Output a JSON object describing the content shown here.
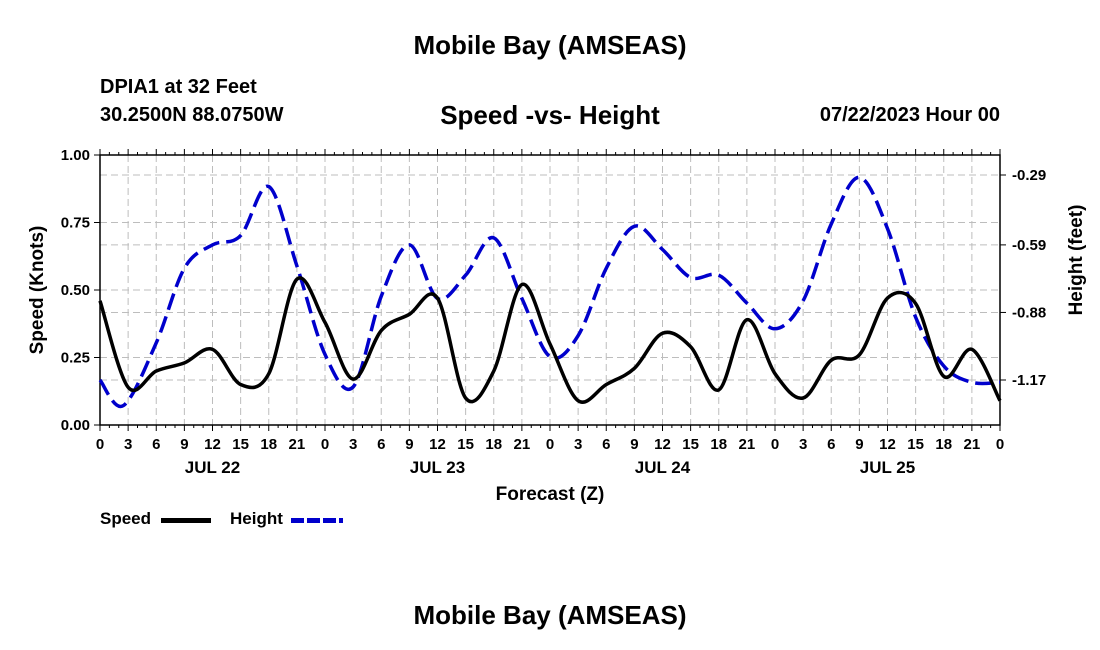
{
  "header": {
    "title": "Mobile Bay (AMSEAS)",
    "station": "DPIA1 at 32 Feet",
    "coords": "30.2500N  88.0750W",
    "subtitle": "Speed -vs- Height",
    "datetime": "07/22/2023 Hour 00"
  },
  "footer": {
    "title": "Mobile Bay (AMSEAS)"
  },
  "chart_data": {
    "type": "line",
    "xlabel": "Forecast (Z)",
    "ylabel": "Speed (Knots)",
    "y2label": "Height (feet)",
    "ylim": [
      0,
      1
    ],
    "y_ticks": [
      "0.00",
      "0.25",
      "0.50",
      "0.75",
      "1.00"
    ],
    "y2_ticks": [
      "-1.17",
      "-0.88",
      "-0.59",
      "-0.29"
    ],
    "x_ticks": [
      "0",
      "3",
      "6",
      "9",
      "12",
      "15",
      "18",
      "21",
      "0",
      "3",
      "6",
      "9",
      "12",
      "15",
      "18",
      "21",
      "0",
      "3",
      "6",
      "9",
      "12",
      "15",
      "18",
      "21",
      "0",
      "3",
      "6",
      "9",
      "12",
      "15",
      "18",
      "21",
      "0"
    ],
    "day_labels": [
      "JUL 22",
      "JUL 23",
      "JUL 24",
      "JUL 25"
    ],
    "grid": true,
    "series": [
      {
        "name": "Speed",
        "color": "#000000",
        "x": [
          0,
          3,
          6,
          9,
          12,
          15,
          18,
          21,
          24,
          27,
          30,
          33,
          36,
          39,
          42,
          45,
          48,
          51,
          54,
          57,
          60,
          63,
          66,
          69,
          72,
          75,
          78,
          81,
          84,
          87,
          90,
          93,
          96
        ],
        "values": [
          0.46,
          0.14,
          0.2,
          0.23,
          0.28,
          0.15,
          0.19,
          0.54,
          0.38,
          0.17,
          0.35,
          0.41,
          0.47,
          0.1,
          0.2,
          0.52,
          0.3,
          0.09,
          0.15,
          0.21,
          0.34,
          0.29,
          0.13,
          0.39,
          0.19,
          0.1,
          0.24,
          0.26,
          0.47,
          0.45,
          0.18,
          0.28,
          0.09
        ]
      },
      {
        "name": "Height",
        "color": "#0000cc",
        "x": [
          0,
          2.5,
          6,
          9,
          12,
          15,
          18,
          21,
          24,
          27,
          30,
          33,
          36,
          39,
          42,
          45,
          48,
          51,
          54,
          57,
          60,
          63,
          66,
          69,
          72,
          75,
          78,
          81,
          84,
          87,
          90,
          93,
          96
        ],
        "values": [
          -1.17,
          -1.28,
          -1.01,
          -0.69,
          -0.59,
          -0.55,
          -0.34,
          -0.68,
          -1.06,
          -1.2,
          -0.81,
          -0.59,
          -0.82,
          -0.72,
          -0.56,
          -0.82,
          -1.07,
          -0.98,
          -0.69,
          -0.51,
          -0.61,
          -0.73,
          -0.72,
          -0.84,
          -0.95,
          -0.83,
          -0.5,
          -0.3,
          -0.52,
          -0.9,
          -1.11,
          -1.18,
          -1.18
        ]
      }
    ]
  }
}
